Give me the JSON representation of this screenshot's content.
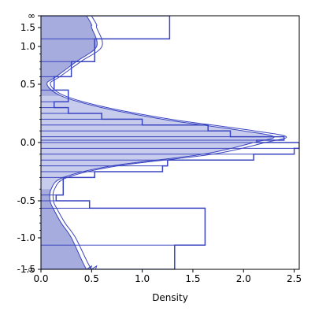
{
  "chart_data": {
    "type": "area",
    "orientation": "horizontal",
    "title": "",
    "xlabel": "Density",
    "ylabel": "",
    "xlim": [
      0,
      2.55
    ],
    "x_ticks": [
      "0.0",
      "0.5",
      "1.0",
      "1.5",
      "2.0",
      "2.5"
    ],
    "y_scale": "arcsinh-like (compressed toward ±∞)",
    "y_ticks": [
      "-∞",
      "-1.5",
      "-1.0",
      "-0.5",
      "0.0",
      "0.5",
      "1.0",
      "1.5",
      "∞"
    ],
    "grid": false,
    "legend": "none",
    "colors": {
      "line": "#3a45c0",
      "light_fill": "#c8ccec",
      "dark_fill": "#a6acde"
    },
    "series": [
      {
        "kind": "kde",
        "y": [
          -1000,
          -2.0,
          -1.5,
          -1.0,
          -0.8,
          -0.6,
          -0.5,
          -0.4,
          -0.3,
          -0.2,
          -0.1,
          0.0,
          0.05,
          0.1,
          0.15,
          0.2,
          0.3,
          0.4,
          0.5,
          0.6,
          0.8,
          1.0,
          1.5,
          2.0,
          1000
        ],
        "density": [
          0.45,
          0.5,
          0.45,
          0.3,
          0.2,
          0.12,
          0.09,
          0.1,
          0.22,
          0.7,
          1.6,
          2.1,
          2.3,
          2.0,
          1.6,
          1.2,
          0.6,
          0.2,
          0.06,
          0.15,
          0.35,
          0.55,
          0.5,
          0.5,
          0.45
        ]
      },
      {
        "kind": "step-histogram",
        "y_edges": [
          -1000,
          -1.2,
          -0.6,
          -0.5,
          -0.45,
          -0.3,
          -0.25,
          -0.2,
          -0.15,
          -0.1,
          -0.05,
          0.0,
          0.02,
          0.05,
          0.1,
          0.15,
          0.2,
          0.25,
          0.3,
          0.35,
          0.45,
          0.6,
          0.8,
          1.2,
          1000
        ],
        "density": [
          1.32,
          1.62,
          0.48,
          0.15,
          0.22,
          0.53,
          1.2,
          1.25,
          2.1,
          2.5,
          2.55,
          2.13,
          2.4,
          1.87,
          1.65,
          1.0,
          0.6,
          0.27,
          0.13,
          0.27,
          0.13,
          0.3,
          0.53,
          1.27
        ]
      }
    ]
  }
}
